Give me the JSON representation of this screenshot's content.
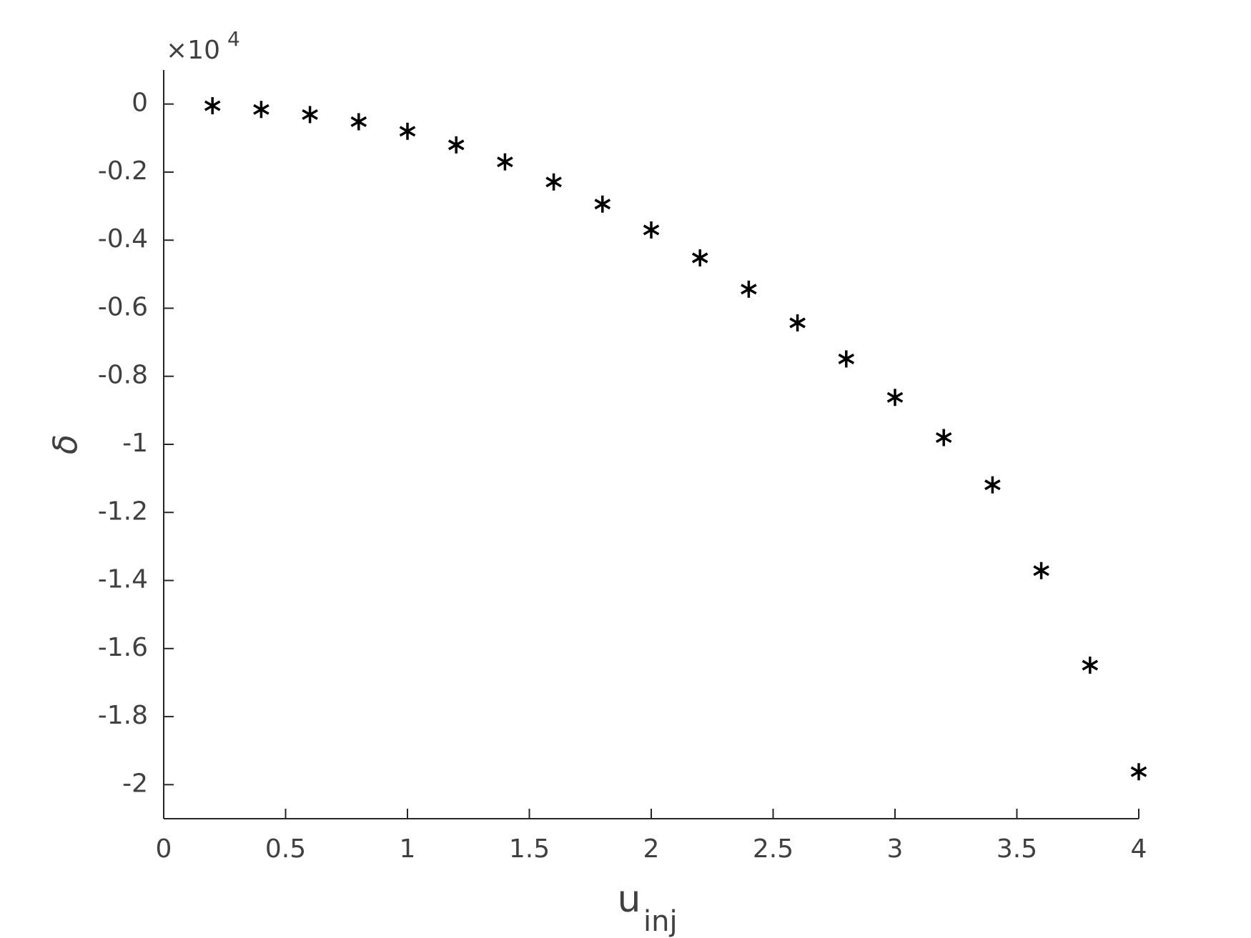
{
  "chart_data": {
    "type": "scatter",
    "marker": "asterisk",
    "color": "#000000",
    "xlabel": {
      "main": "u",
      "subscript": "inj"
    },
    "ylabel": "δ",
    "y_scale_label": {
      "base": "×10",
      "exponent": "4"
    },
    "x": [
      0.2,
      0.4,
      0.6,
      0.8,
      1.0,
      1.2,
      1.4,
      1.6,
      1.8,
      2.0,
      2.2,
      2.4,
      2.6,
      2.8,
      3.0,
      3.2,
      3.4,
      3.6,
      3.8,
      4.0
    ],
    "values": [
      -0.005,
      -0.016,
      -0.031,
      -0.052,
      -0.08,
      -0.12,
      -0.17,
      -0.229,
      -0.294,
      -0.37,
      -0.452,
      -0.544,
      -0.643,
      -0.749,
      -0.862,
      -0.98,
      -1.119,
      -1.371,
      -1.649,
      -1.962
    ],
    "xlim": [
      0,
      4
    ],
    "xticks": [
      0,
      0.5,
      1,
      1.5,
      2,
      2.5,
      3,
      3.5,
      4
    ],
    "ylim": [
      -2.1,
      0.1
    ],
    "yticks": [
      0,
      -0.2,
      -0.4,
      -0.6,
      -0.8,
      -1,
      -1.2,
      -1.4,
      -1.6,
      -1.8,
      -2
    ],
    "grid": false
  }
}
